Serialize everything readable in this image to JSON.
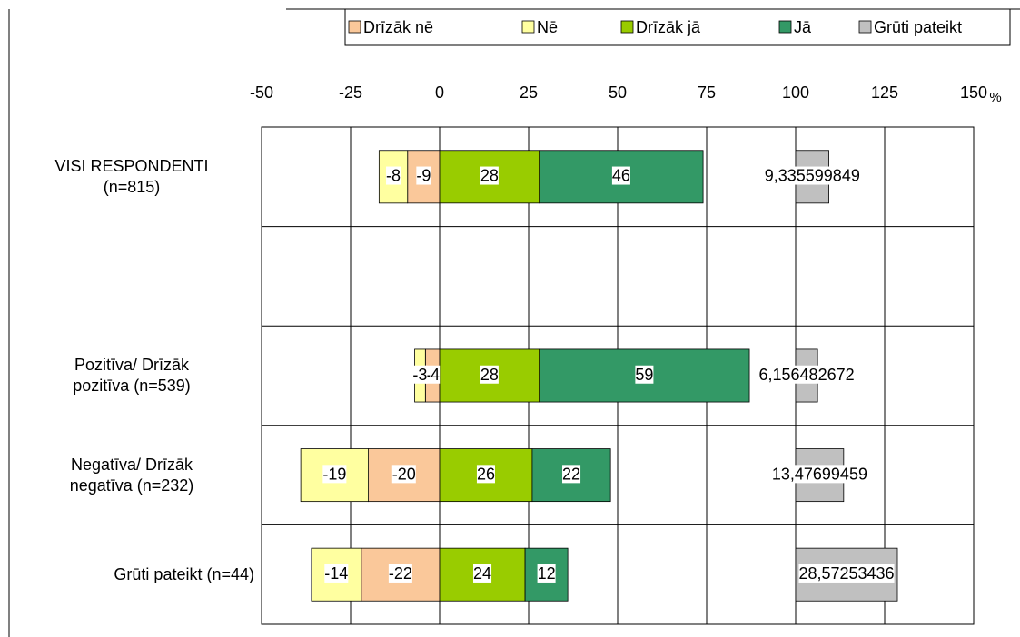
{
  "chart_data": {
    "type": "diverging-bar",
    "orientation": "horizontal",
    "categories": [
      "VISI RESPONDENTI\n(n=815)",
      null,
      "Pozitīva/ Drīzāk\npozitīva (n=539)",
      "Negatīva/ Drīzāk\nnegatīva (n=232)",
      "Grūti pateikt (n=44)"
    ],
    "series": [
      {
        "name": "Drīzāk nē",
        "color": "#fac89a",
        "values": [
          -9,
          null,
          -4,
          -20,
          -22
        ]
      },
      {
        "name": "Nē",
        "color": "#ffffa0",
        "values": [
          -8,
          null,
          -3,
          -19,
          -14
        ]
      },
      {
        "name": "Drīzāk jā",
        "color": "#99cc00",
        "values": [
          28,
          null,
          28,
          26,
          24
        ]
      },
      {
        "name": "Jā",
        "color": "#339966",
        "values": [
          46,
          null,
          59,
          22,
          12
        ]
      },
      {
        "name": "Grūti pateikt",
        "color": "#c0c0c0",
        "base": 100,
        "values": [
          9.335599849,
          null,
          6.156482672,
          13.47699459,
          28.57253436
        ],
        "value_labels": [
          "9,335599849",
          null,
          "6,156482672",
          "13,47699459",
          "28,57253436"
        ]
      }
    ],
    "xlim": [
      -50,
      150
    ],
    "xticks": [
      -50,
      -25,
      0,
      25,
      50,
      75,
      100,
      125,
      150
    ],
    "x_unit": "%",
    "grid": true,
    "legend": "top"
  }
}
